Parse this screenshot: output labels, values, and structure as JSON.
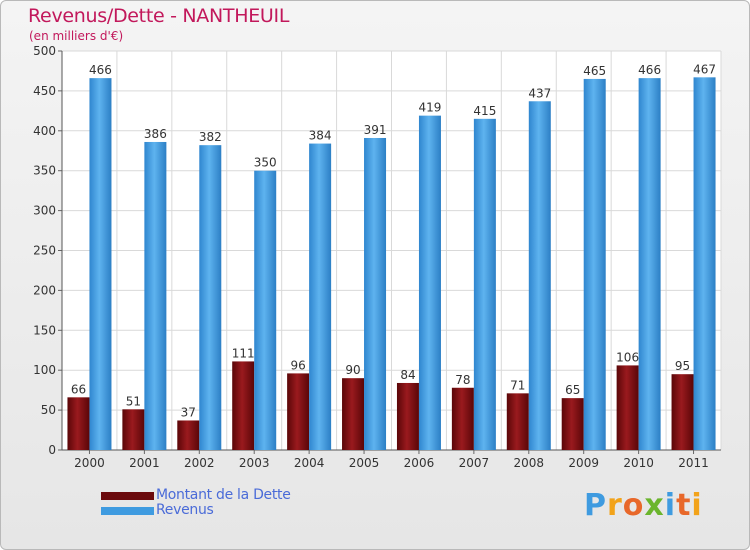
{
  "title": "Revenus/Dette - NANTHEUIL",
  "subtitle": "(en milliers d'€)",
  "colors": {
    "accent_title": "#c2185b",
    "debt": "#7a0f12",
    "revenue": "#3f9be0",
    "legend_text": "#4a6bd8"
  },
  "legend": [
    {
      "label": "Montant de la Dette",
      "color": "#6b0a0d"
    },
    {
      "label": "Revenus",
      "color": "#3f9be0"
    }
  ],
  "logo": {
    "text": "Proxiti"
  },
  "chart_data": {
    "type": "bar",
    "categories": [
      "2000",
      "2001",
      "2002",
      "2003",
      "2004",
      "2005",
      "2006",
      "2007",
      "2008",
      "2009",
      "2010",
      "2011"
    ],
    "series": [
      {
        "name": "Montant de la Dette",
        "values": [
          66,
          51,
          37,
          111,
          96,
          90,
          84,
          78,
          71,
          65,
          106,
          95
        ]
      },
      {
        "name": "Revenus",
        "values": [
          466,
          386,
          382,
          350,
          384,
          391,
          419,
          415,
          437,
          465,
          466,
          467
        ]
      }
    ],
    "y_ticks": [
      "0",
      "50",
      "100",
      "150",
      "200",
      "250",
      "300",
      "350",
      "400",
      "450",
      "500"
    ],
    "ylim": [
      0,
      500
    ],
    "grid": true,
    "legend_position": "bottom-left"
  }
}
